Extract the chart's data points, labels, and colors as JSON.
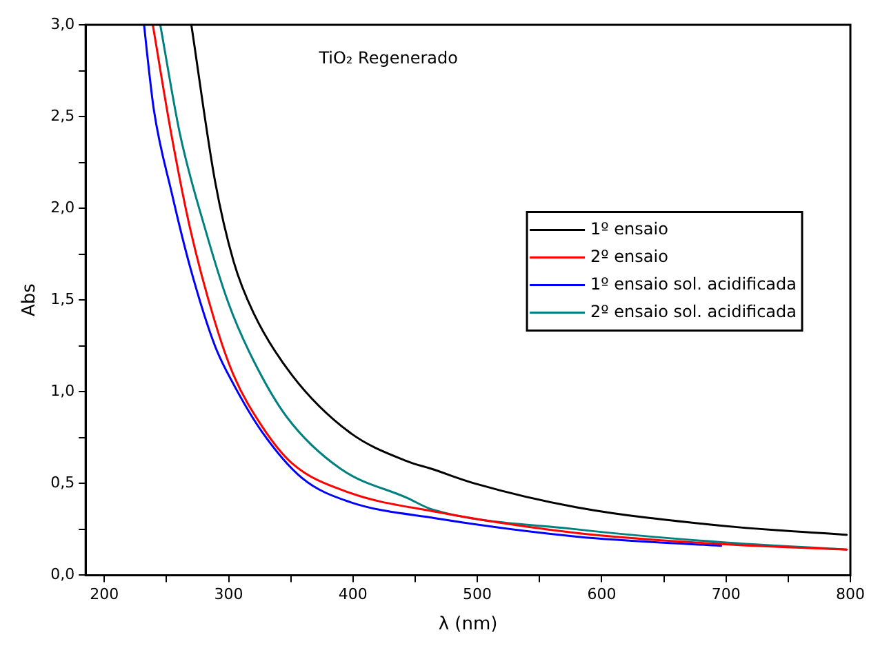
{
  "chart_data": {
    "type": "line",
    "title": "TiO₂ Regenerado",
    "xlabel": "λ (nm)",
    "ylabel": "Abs",
    "xlim": [
      185,
      800
    ],
    "ylim": [
      0,
      3
    ],
    "xticks": [
      200,
      {
        "value": 250,
        "label": null
      },
      300,
      {
        "value": 350,
        "label": null
      },
      400,
      {
        "value": 450,
        "label": null
      },
      500,
      {
        "value": 550,
        "label": null
      },
      600,
      {
        "value": 650,
        "label": null
      },
      700,
      {
        "value": 750,
        "label": null
      },
      800
    ],
    "yticks": [
      {
        "value": 0,
        "label": "0,0"
      },
      {
        "value": 0.25,
        "label": null
      },
      {
        "value": 0.5,
        "label": "0,5"
      },
      {
        "value": 0.75,
        "label": null
      },
      {
        "value": 1,
        "label": "1,0"
      },
      {
        "value": 1.25,
        "label": null
      },
      {
        "value": 1.5,
        "label": "1,5"
      },
      {
        "value": 1.75,
        "label": null
      },
      {
        "value": 2,
        "label": "2,0"
      },
      {
        "value": 2.25,
        "label": null
      },
      {
        "value": 2.5,
        "label": "2,5"
      },
      {
        "value": 2.75,
        "label": null
      },
      {
        "value": 3,
        "label": "3,0"
      }
    ],
    "grid": false,
    "legend": "right",
    "marker": "none",
    "line_style": "solid",
    "series": [
      {
        "name": "1º ensaio",
        "color": "#000000",
        "x": [
          270,
          289,
          304,
          320,
          351,
          397,
          444,
          463,
          498,
          580,
          696,
          797
        ],
        "values": [
          3.0,
          2.15,
          1.71,
          1.43,
          1.09,
          0.78,
          0.62,
          0.58,
          0.5,
          0.37,
          0.27,
          0.22
        ]
      },
      {
        "name": "2º ensaio",
        "color": "#ff0000",
        "x": [
          239,
          254,
          269,
          289,
          304,
          327,
          351,
          397,
          463,
          580,
          696,
          797
        ],
        "values": [
          3.0,
          2.4,
          1.89,
          1.38,
          1.09,
          0.81,
          0.61,
          0.45,
          0.35,
          0.23,
          0.17,
          0.14
        ]
      },
      {
        "name": "1º ensaio sol. acidificada",
        "color": "#0000ff",
        "x": [
          232,
          234,
          240,
          254,
          269,
          289,
          304,
          327,
          359,
          397,
          467,
          580,
          696
        ],
        "values": [
          3.0,
          2.87,
          2.53,
          2.09,
          1.68,
          1.25,
          1.04,
          0.78,
          0.53,
          0.4,
          0.31,
          0.21,
          0.16
        ]
      },
      {
        "name": "2º ensaio sol. acidificada",
        "color": "#008080",
        "x": [
          245,
          261,
          281,
          300,
          320,
          347,
          390,
          444,
          463,
          580,
          696,
          797
        ],
        "values": [
          3.0,
          2.4,
          1.89,
          1.48,
          1.17,
          0.86,
          0.58,
          0.42,
          0.36,
          0.25,
          0.18,
          0.14
        ]
      }
    ]
  }
}
